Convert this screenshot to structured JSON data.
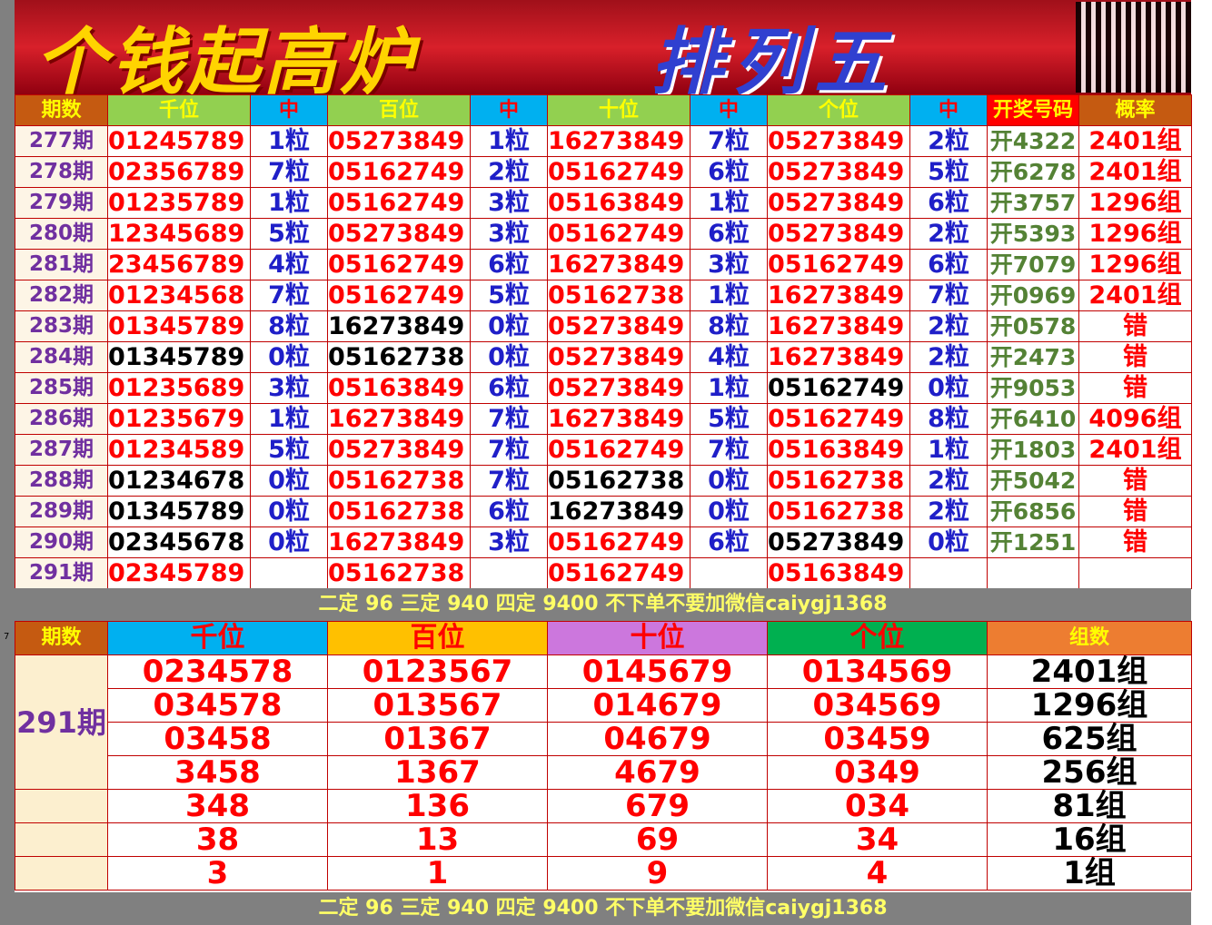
{
  "banner": {
    "title": "个钱起高炉",
    "subtitle": "排列五"
  },
  "side_label": "7",
  "table1": {
    "header": [
      "期数",
      "千位",
      "中",
      "百位",
      "中",
      "十位",
      "中",
      "个位",
      "中",
      "开奖号码",
      "概率"
    ],
    "rows": [
      [
        "277期",
        "01245789",
        "1粒",
        "05273849",
        "1粒",
        "16273849",
        "7粒",
        "05273849",
        "2粒",
        "开4322",
        "2401组"
      ],
      [
        "278期",
        "02356789",
        "7粒",
        "05162749",
        "2粒",
        "05162749",
        "6粒",
        "05273849",
        "5粒",
        "开6278",
        "2401组"
      ],
      [
        "279期",
        "01235789",
        "1粒",
        "05162749",
        "3粒",
        "05163849",
        "1粒",
        "05273849",
        "6粒",
        "开3757",
        "1296组"
      ],
      [
        "280期",
        "12345689",
        "5粒",
        "05273849",
        "3粒",
        "05162749",
        "6粒",
        "05273849",
        "2粒",
        "开5393",
        "1296组"
      ],
      [
        "281期",
        "23456789",
        "4粒",
        "05162749",
        "6粒",
        "16273849",
        "3粒",
        "05162749",
        "6粒",
        "开7079",
        "1296组"
      ],
      [
        "282期",
        "01234568",
        "7粒",
        "05162749",
        "5粒",
        "05162738",
        "1粒",
        "16273849",
        "7粒",
        "开0969",
        "2401组"
      ],
      [
        "283期",
        "01345789",
        "8粒",
        "16273849",
        "0粒",
        "05273849",
        "8粒",
        "16273849",
        "2粒",
        "开0578",
        "错"
      ],
      [
        "284期",
        "01345789",
        "0粒",
        "05162738",
        "0粒",
        "05273849",
        "4粒",
        "16273849",
        "2粒",
        "开2473",
        "错"
      ],
      [
        "285期",
        "01235689",
        "3粒",
        "05163849",
        "6粒",
        "05273849",
        "1粒",
        "05162749",
        "0粒",
        "开9053",
        "错"
      ],
      [
        "286期",
        "01235679",
        "1粒",
        "16273849",
        "7粒",
        "16273849",
        "5粒",
        "05162749",
        "8粒",
        "开6410",
        "4096组"
      ],
      [
        "287期",
        "01234589",
        "5粒",
        "05273849",
        "7粒",
        "05162749",
        "7粒",
        "05163849",
        "1粒",
        "开1803",
        "2401组"
      ],
      [
        "288期",
        "01234678",
        "0粒",
        "05162738",
        "7粒",
        "05162738",
        "0粒",
        "05162738",
        "2粒",
        "开5042",
        "错"
      ],
      [
        "289期",
        "01345789",
        "0粒",
        "05162738",
        "6粒",
        "16273849",
        "0粒",
        "05162738",
        "2粒",
        "开6856",
        "错"
      ],
      [
        "290期",
        "02345678",
        "0粒",
        "16273849",
        "3粒",
        "05162749",
        "6粒",
        "05273849",
        "0粒",
        "开1251",
        "错"
      ],
      [
        "291期",
        "02345789",
        null,
        "05162738",
        null,
        "05162749",
        null,
        "05163849",
        null,
        null,
        null
      ]
    ]
  },
  "note": "二定 96 三定 940 四定 9400 不下单不要加微信caiygj1368",
  "table2": {
    "header": [
      "期数",
      "千位",
      "百位",
      "十位",
      "个位",
      "组数"
    ],
    "period": "291期",
    "rows": [
      [
        "0234578",
        "0123567",
        "0145679",
        "0134569",
        "2401组"
      ],
      [
        "034578",
        "013567",
        "014679",
        "034569",
        "1296组"
      ],
      [
        "03458",
        "01367",
        "04679",
        "03459",
        "625组"
      ],
      [
        "3458",
        "1367",
        "4679",
        "0349",
        "256组"
      ],
      [
        "348",
        "136",
        "679",
        "034",
        "81组"
      ],
      [
        "38",
        "13",
        "69",
        "34",
        "16组"
      ],
      [
        "3",
        "1",
        "9",
        "4",
        "1组"
      ]
    ]
  }
}
